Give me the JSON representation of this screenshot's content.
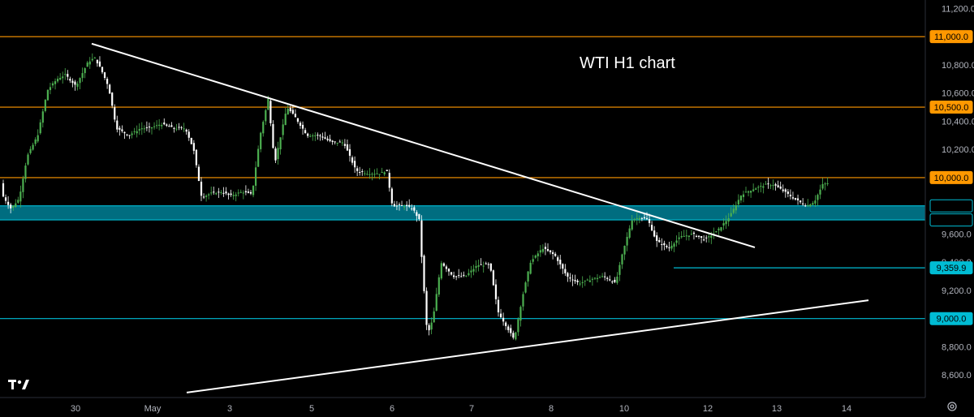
{
  "title": "WTI H1 chart",
  "chart_data": {
    "type": "candlestick",
    "title": "WTI H1 chart",
    "ylim": [
      8440,
      11260
    ],
    "y_ticks": [
      {
        "value": 11200,
        "label": "11,200.0"
      },
      {
        "value": 10800,
        "label": "10,800.0"
      },
      {
        "value": 10600,
        "label": "10,600.0"
      },
      {
        "value": 10400,
        "label": "10,400.0"
      },
      {
        "value": 10200,
        "label": "10,200.0"
      },
      {
        "value": 9600,
        "label": "9,600.0"
      },
      {
        "value": 9400,
        "label": "9,400.0"
      },
      {
        "value": 9200,
        "label": "9,200.0"
      },
      {
        "value": 8800,
        "label": "8,800.0"
      },
      {
        "value": 8600,
        "label": "8,600.0"
      }
    ],
    "x_ticks": [
      "30",
      "May",
      "3",
      "5",
      "6",
      "7",
      "8",
      "10",
      "12",
      "13",
      "14"
    ],
    "price_levels": [
      {
        "value": 11000,
        "label": "11,000.0",
        "color": "#ff9800",
        "style": "tag"
      },
      {
        "value": 10500,
        "label": "10,500.0",
        "color": "#ff9800",
        "style": "tag"
      },
      {
        "value": 10000,
        "label": "10,000.0",
        "color": "#ff9800",
        "style": "tag"
      },
      {
        "value": 9800,
        "label": "9,800.0",
        "color": "#00bcd4",
        "style": "box"
      },
      {
        "value": 9700,
        "label": "9,700.0",
        "color": "#00bcd4",
        "style": "box"
      },
      {
        "value": 9359.9,
        "label": "9,359.9",
        "color": "#00bcd4",
        "style": "tag"
      },
      {
        "value": 9000,
        "label": "9,000.0",
        "color": "#00bcd4",
        "style": "tag"
      }
    ],
    "support_zone": [
      9700,
      9800
    ],
    "trendlines": [
      {
        "name": "descending",
        "x0": 113,
        "y0": 10950,
        "x1": 930,
        "y1": 9505
      },
      {
        "name": "ascending",
        "x0": 230,
        "y0": 8475,
        "x1": 1070,
        "y1": 9130
      }
    ],
    "colors": {
      "up": "#4caf50",
      "down": "#ffffff",
      "zone": "#006d80"
    },
    "price_path": [
      [
        4,
        9880
      ],
      [
        15,
        9780
      ],
      [
        25,
        9850
      ],
      [
        35,
        10150
      ],
      [
        48,
        10300
      ],
      [
        60,
        10620
      ],
      [
        72,
        10700
      ],
      [
        82,
        10730
      ],
      [
        95,
        10650
      ],
      [
        110,
        10820
      ],
      [
        118,
        10850
      ],
      [
        125,
        10780
      ],
      [
        135,
        10650
      ],
      [
        145,
        10350
      ],
      [
        160,
        10300
      ],
      [
        175,
        10350
      ],
      [
        185,
        10350
      ],
      [
        200,
        10380
      ],
      [
        215,
        10350
      ],
      [
        230,
        10350
      ],
      [
        240,
        10200
      ],
      [
        250,
        9860
      ],
      [
        262,
        9890
      ],
      [
        275,
        9900
      ],
      [
        285,
        9870
      ],
      [
        300,
        9900
      ],
      [
        312,
        9880
      ],
      [
        322,
        10300
      ],
      [
        332,
        10560
      ],
      [
        340,
        10100
      ],
      [
        355,
        10500
      ],
      [
        365,
        10430
      ],
      [
        380,
        10300
      ],
      [
        395,
        10300
      ],
      [
        410,
        10250
      ],
      [
        425,
        10250
      ],
      [
        440,
        10050
      ],
      [
        455,
        10030
      ],
      [
        470,
        10030
      ],
      [
        478,
        10050
      ],
      [
        485,
        9800
      ],
      [
        500,
        9800
      ],
      [
        510,
        9780
      ],
      [
        518,
        9700
      ],
      [
        522,
        9350
      ],
      [
        528,
        8880
      ],
      [
        535,
        9000
      ],
      [
        545,
        9400
      ],
      [
        560,
        9300
      ],
      [
        575,
        9300
      ],
      [
        590,
        9380
      ],
      [
        605,
        9380
      ],
      [
        615,
        9050
      ],
      [
        625,
        8950
      ],
      [
        635,
        8850
      ],
      [
        645,
        9150
      ],
      [
        655,
        9400
      ],
      [
        670,
        9500
      ],
      [
        685,
        9450
      ],
      [
        700,
        9300
      ],
      [
        715,
        9250
      ],
      [
        730,
        9280
      ],
      [
        745,
        9300
      ],
      [
        760,
        9250
      ],
      [
        768,
        9450
      ],
      [
        780,
        9700
      ],
      [
        790,
        9720
      ],
      [
        800,
        9700
      ],
      [
        810,
        9550
      ],
      [
        825,
        9500
      ],
      [
        840,
        9580
      ],
      [
        855,
        9600
      ],
      [
        870,
        9560
      ],
      [
        885,
        9620
      ],
      [
        900,
        9720
      ],
      [
        915,
        9880
      ],
      [
        930,
        9920
      ],
      [
        945,
        9950
      ],
      [
        955,
        9950
      ],
      [
        968,
        9900
      ],
      [
        980,
        9850
      ],
      [
        995,
        9800
      ],
      [
        1005,
        9830
      ],
      [
        1015,
        9950
      ],
      [
        1020,
        9960
      ]
    ]
  }
}
